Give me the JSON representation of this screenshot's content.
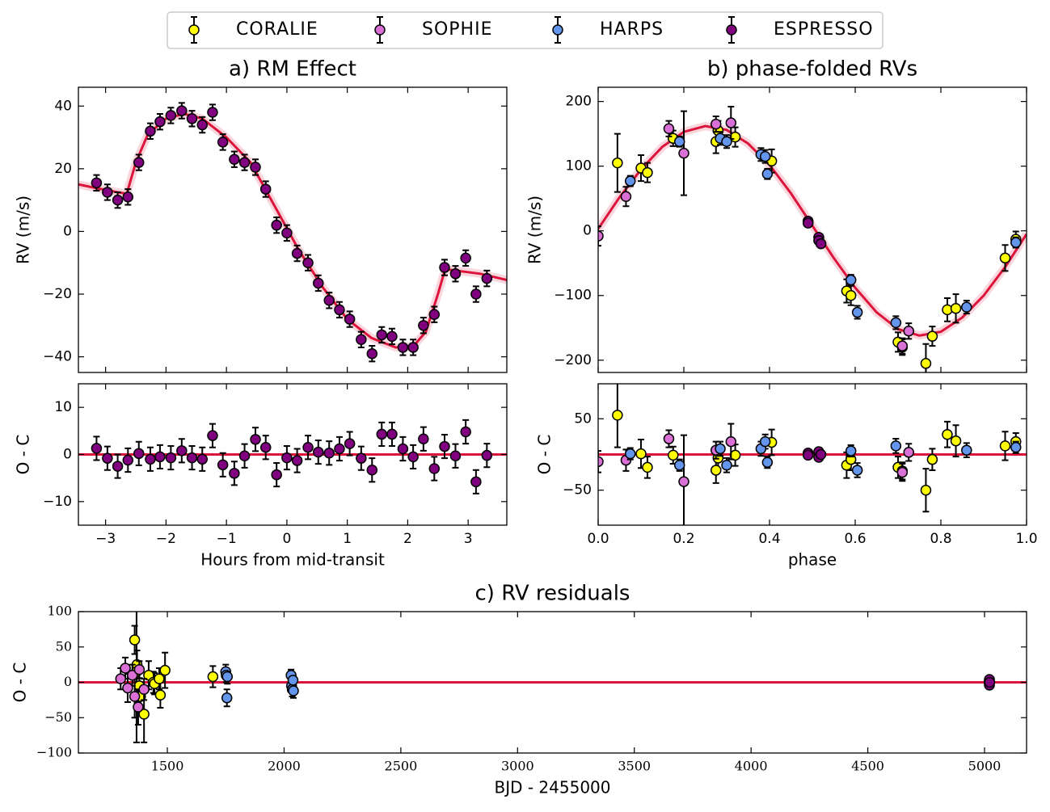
{
  "chart_data": [
    {
      "type": "errorbar",
      "title": "a) RM Effect",
      "ylabel": "RV (m/s)",
      "xlim": [
        -3.45,
        3.64
      ],
      "ylim": [
        -45,
        46
      ],
      "xticks": [
        {
          "value": -3,
          "label": "−3"
        },
        {
          "value": -2,
          "label": "−2"
        },
        {
          "value": -1,
          "label": "−1"
        },
        0,
        1,
        2,
        3
      ],
      "show_xtick_labels": false,
      "yticks": [
        {
          "value": -40,
          "label": "−40"
        },
        {
          "value": -20,
          "label": "−20"
        },
        0,
        20,
        40
      ],
      "model": {
        "color": "#dc143c",
        "x": [
          -3.45,
          -3.2,
          -2.8,
          -2.65,
          -2.5,
          -2.3,
          -2.0,
          -1.7,
          -1.4,
          -1.0,
          -0.6,
          -0.2,
          0.2,
          0.6,
          1.0,
          1.4,
          1.8,
          2.1,
          2.3,
          2.5,
          2.62,
          2.8,
          3.2,
          3.64
        ],
        "values": [
          15,
          14,
          12.5,
          12,
          22,
          31,
          36,
          37.5,
          36,
          30,
          22,
          8,
          -6,
          -18,
          -28,
          -34,
          -37,
          -36.5,
          -32,
          -20,
          -12,
          -12.5,
          -13.5,
          -15.5
        ]
      },
      "series": [
        {
          "name": "ESPRESSO",
          "color": "#800080",
          "x": [
            -3.15,
            -2.97,
            -2.8,
            -2.63,
            -2.45,
            -2.26,
            -2.1,
            -1.92,
            -1.74,
            -1.57,
            -1.4,
            -1.23,
            -1.06,
            -0.87,
            -0.7,
            -0.52,
            -0.35,
            -0.17,
            0.0,
            0.17,
            0.35,
            0.52,
            0.7,
            0.87,
            1.04,
            1.23,
            1.41,
            1.57,
            1.74,
            1.92,
            2.09,
            2.26,
            2.44,
            2.61,
            2.79,
            2.96,
            3.13,
            3.31
          ],
          "values": [
            15.5,
            12.5,
            10,
            11,
            22,
            32,
            35,
            37,
            38.5,
            36,
            34,
            38,
            28.5,
            23,
            22,
            20.5,
            13.5,
            2,
            -0.5,
            -7,
            -10,
            -16.5,
            -22,
            -25,
            -28,
            -34.5,
            -39,
            -33,
            -33.5,
            -37,
            -37,
            -30,
            -26.5,
            -11.5,
            -13.5,
            -8.5,
            -20,
            -15
          ],
          "errors": [
            2.5,
            2.5,
            2.5,
            2.5,
            2.5,
            2.5,
            2.5,
            2.5,
            2.5,
            2.5,
            2.5,
            2.5,
            2.5,
            2.5,
            2.5,
            2.5,
            2.5,
            2.5,
            2.5,
            2.5,
            2.5,
            2.5,
            2.5,
            2.5,
            2.5,
            2.5,
            2.5,
            2.5,
            2.5,
            2.5,
            2.5,
            2.5,
            2.5,
            2.5,
            2.5,
            2.5,
            2.5,
            2.5
          ]
        }
      ]
    },
    {
      "type": "errorbar",
      "ylabel": "O - C",
      "xlabel": "Hours from mid-transit",
      "xlim": [
        -3.45,
        3.64
      ],
      "ylim": [
        -15,
        15
      ],
      "xticks": [
        {
          "value": -3,
          "label": "−3"
        },
        {
          "value": -2,
          "label": "−2"
        },
        {
          "value": -1,
          "label": "−1"
        },
        0,
        1,
        2,
        3
      ],
      "yticks": [
        {
          "value": -10,
          "label": "−10"
        },
        0,
        10
      ],
      "reference_line": 0,
      "reference_color": "#dc143c",
      "series": [
        {
          "name": "ESPRESSO",
          "color": "#800080",
          "x": [
            -3.15,
            -2.97,
            -2.8,
            -2.63,
            -2.45,
            -2.26,
            -2.1,
            -1.92,
            -1.74,
            -1.57,
            -1.4,
            -1.23,
            -1.06,
            -0.87,
            -0.7,
            -0.52,
            -0.35,
            -0.17,
            0.0,
            0.17,
            0.35,
            0.52,
            0.7,
            0.87,
            1.04,
            1.23,
            1.41,
            1.57,
            1.74,
            1.92,
            2.09,
            2.26,
            2.44,
            2.61,
            2.79,
            2.96,
            3.13,
            3.31
          ],
          "values": [
            1.3,
            -0.8,
            -2.5,
            -1.2,
            0.2,
            -1,
            -0.5,
            -0.7,
            0.8,
            -0.7,
            -1,
            4,
            -2.2,
            -4,
            -0.3,
            3.2,
            1.5,
            -4.3,
            -0.7,
            -1.3,
            1.5,
            0.5,
            0.3,
            1.2,
            2.3,
            -0.8,
            -3.3,
            4.3,
            4.3,
            1.2,
            -0.5,
            3.3,
            -3,
            1.7,
            -0.3,
            4.8,
            -5.8,
            -0.2
          ],
          "errors": [
            2.5,
            2.5,
            2.5,
            2.5,
            2.5,
            2.5,
            2.5,
            2.5,
            2.5,
            2.5,
            2.5,
            2.5,
            2.5,
            2.5,
            2.5,
            2.5,
            2.5,
            2.5,
            2.5,
            2.5,
            2.5,
            2.5,
            2.5,
            2.5,
            2.5,
            2.5,
            2.5,
            2.5,
            2.5,
            2.5,
            2.5,
            2.5,
            2.5,
            2.5,
            2.5,
            2.5,
            2.5,
            2.5
          ]
        }
      ]
    },
    {
      "type": "errorbar",
      "title": "b) phase-folded RVs",
      "ylabel": "RV (m/s)",
      "xlim": [
        0,
        1
      ],
      "ylim": [
        -219,
        222
      ],
      "xticks": [
        {
          "value": 0,
          "label": "0.0"
        },
        0.2,
        0.4,
        0.6,
        0.8,
        {
          "value": 1,
          "label": "1.0"
        }
      ],
      "show_xtick_labels": false,
      "yticks": [
        {
          "value": -200,
          "label": "−200"
        },
        {
          "value": -100,
          "label": "−100"
        },
        0,
        100,
        200
      ],
      "model": {
        "color": "#dc143c",
        "x": [
          0,
          0.05,
          0.1,
          0.15,
          0.2,
          0.25,
          0.3,
          0.35,
          0.4,
          0.45,
          0.5,
          0.55,
          0.6,
          0.65,
          0.7,
          0.75,
          0.8,
          0.85,
          0.9,
          0.95,
          1
        ],
        "values": [
          3,
          52,
          95,
          130,
          153,
          162,
          156,
          135,
          102,
          58,
          8,
          -42,
          -88,
          -126,
          -152,
          -162,
          -156,
          -134,
          -100,
          -56,
          -5
        ]
      },
      "series": [
        {
          "name": "CORALIE",
          "color": "#ffff00",
          "x": [
            0.045,
            0.1,
            0.115,
            0.175,
            0.275,
            0.28,
            0.32,
            0.405,
            0.58,
            0.59,
            0.7,
            0.71,
            0.765,
            0.78,
            0.815,
            0.835,
            0.95,
            0.975
          ],
          "values": [
            105,
            97,
            90,
            143,
            138,
            155,
            145,
            108,
            -93,
            -100,
            -172,
            -180,
            -205,
            -163,
            -122,
            -120,
            -42,
            -13
          ],
          "errors": [
            45,
            20,
            15,
            12,
            18,
            15,
            15,
            18,
            18,
            15,
            15,
            12,
            30,
            15,
            18,
            22,
            20,
            12
          ]
        },
        {
          "name": "SOPHIE",
          "color": "#da70d6",
          "x": [
            0.0,
            0.065,
            0.165,
            0.2,
            0.275,
            0.31,
            0.71,
            0.725
          ],
          "values": [
            -8,
            53,
            158,
            120,
            165,
            167,
            -178,
            -155
          ],
          "errors": [
            15,
            15,
            12,
            65,
            12,
            25,
            12,
            12
          ]
        },
        {
          "name": "HARPS",
          "color": "#6495ed",
          "x": [
            0.075,
            0.19,
            0.285,
            0.3,
            0.38,
            0.39,
            0.395,
            0.59,
            0.605,
            0.695,
            0.86,
            0.975
          ],
          "values": [
            77,
            138,
            143,
            138,
            118,
            115,
            88,
            -76,
            -126,
            -142,
            -118,
            -18
          ],
          "errors": [
            8,
            8,
            10,
            10,
            10,
            10,
            8,
            8,
            10,
            10,
            10,
            8
          ]
        },
        {
          "name": "ESPRESSO",
          "color": "#800080",
          "x": [
            0.49,
            0.49,
            0.515,
            0.515,
            0.52
          ],
          "values": [
            15,
            12,
            -10,
            -15,
            -20
          ],
          "errors": [
            3,
            3,
            3,
            3,
            3
          ]
        }
      ]
    },
    {
      "type": "errorbar",
      "ylabel": "O - C",
      "xlabel": "phase",
      "xlim": [
        0,
        1
      ],
      "ylim": [
        -99,
        99
      ],
      "xticks": [
        {
          "value": 0,
          "label": "0.0"
        },
        0.2,
        0.4,
        0.6,
        0.8,
        {
          "value": 1,
          "label": "1.0"
        }
      ],
      "yticks": [
        {
          "value": -50,
          "label": "−50"
        },
        50
      ],
      "reference_line": 0,
      "reference_color": "#dc143c",
      "series": [
        {
          "name": "CORALIE",
          "color": "#ffff00",
          "x": [
            0.045,
            0.1,
            0.115,
            0.175,
            0.275,
            0.28,
            0.32,
            0.405,
            0.58,
            0.59,
            0.7,
            0.71,
            0.765,
            0.78,
            0.815,
            0.835,
            0.95,
            0.975
          ],
          "values": [
            55,
            1,
            -18,
            -1,
            -22,
            -5,
            -1,
            17,
            -15,
            -7,
            -18,
            -23,
            -50,
            -7,
            28,
            19,
            12,
            18
          ],
          "errors": [
            45,
            20,
            15,
            12,
            18,
            15,
            15,
            18,
            18,
            15,
            15,
            12,
            30,
            15,
            18,
            22,
            20,
            12
          ]
        },
        {
          "name": "SOPHIE",
          "color": "#da70d6",
          "x": [
            0.0,
            0.065,
            0.165,
            0.2,
            0.275,
            0.31,
            0.71,
            0.725
          ],
          "values": [
            -10,
            -8,
            22,
            -38,
            6,
            18,
            -25,
            3
          ],
          "errors": [
            15,
            15,
            12,
            65,
            12,
            25,
            12,
            12
          ]
        },
        {
          "name": "HARPS",
          "color": "#6495ed",
          "x": [
            0.075,
            0.19,
            0.285,
            0.3,
            0.38,
            0.39,
            0.395,
            0.59,
            0.605,
            0.695,
            0.86,
            0.975
          ],
          "values": [
            1,
            -15,
            8,
            -15,
            8,
            18,
            -11,
            5,
            -22,
            12,
            6,
            10
          ],
          "errors": [
            8,
            8,
            10,
            10,
            10,
            10,
            8,
            8,
            10,
            10,
            10,
            8
          ]
        },
        {
          "name": "ESPRESSO",
          "color": "#800080",
          "x": [
            0.49,
            0.49,
            0.515,
            0.515,
            0.52
          ],
          "values": [
            2,
            -1,
            4,
            -4,
            0
          ],
          "errors": [
            3,
            3,
            3,
            3,
            3
          ]
        }
      ]
    },
    {
      "type": "errorbar",
      "title": "c) RV residuals",
      "ylabel": "O - C",
      "xlabel": "BJD - 2455000",
      "xlim": [
        1119,
        5180
      ],
      "ylim": [
        -100,
        100
      ],
      "xticks": [
        1500,
        2000,
        2500,
        3000,
        3500,
        4000,
        4500,
        5000
      ],
      "yticks": [
        {
          "value": -100,
          "label": "−100"
        },
        {
          "value": -50,
          "label": "−50"
        },
        0,
        50,
        100
      ],
      "reference_line": 0,
      "reference_color": "#dc143c",
      "series": [
        {
          "name": "CORALIE",
          "color": "#ffff00",
          "x": [
            1360,
            1370,
            1380,
            1400,
            1420,
            1440,
            1445,
            1470,
            1490,
            1695,
            1368,
            1385,
            1465
          ],
          "values": [
            60,
            25,
            -5,
            -45,
            10,
            0,
            -2,
            -18,
            17,
            8,
            15,
            -20,
            5
          ],
          "errors": [
            20,
            20,
            18,
            40,
            20,
            15,
            15,
            18,
            25,
            15,
            100,
            20,
            15
          ]
        },
        {
          "name": "SOPHIE",
          "color": "#da70d6",
          "x": [
            1300,
            1320,
            1330,
            1350,
            1360,
            1375,
            1380,
            1400
          ],
          "values": [
            5,
            20,
            -8,
            10,
            -20,
            -35,
            18,
            -10
          ],
          "errors": [
            15,
            15,
            20,
            15,
            30,
            25,
            12,
            15
          ]
        },
        {
          "name": "HARPS",
          "color": "#6495ed",
          "x": [
            1750,
            1752,
            1755,
            1757,
            2030,
            2032,
            2035,
            2038,
            2040
          ],
          "values": [
            15,
            10,
            -22,
            8,
            10,
            -5,
            -10,
            3,
            -12
          ],
          "errors": [
            10,
            10,
            12,
            10,
            8,
            8,
            10,
            8,
            10
          ]
        },
        {
          "name": "ESPRESSO",
          "color": "#800080",
          "x": [
            5020,
            5020,
            5021,
            5021,
            5022
          ],
          "values": [
            2,
            -1,
            4,
            -4,
            0
          ],
          "errors": [
            3,
            3,
            3,
            3,
            3
          ]
        }
      ]
    }
  ]
}
